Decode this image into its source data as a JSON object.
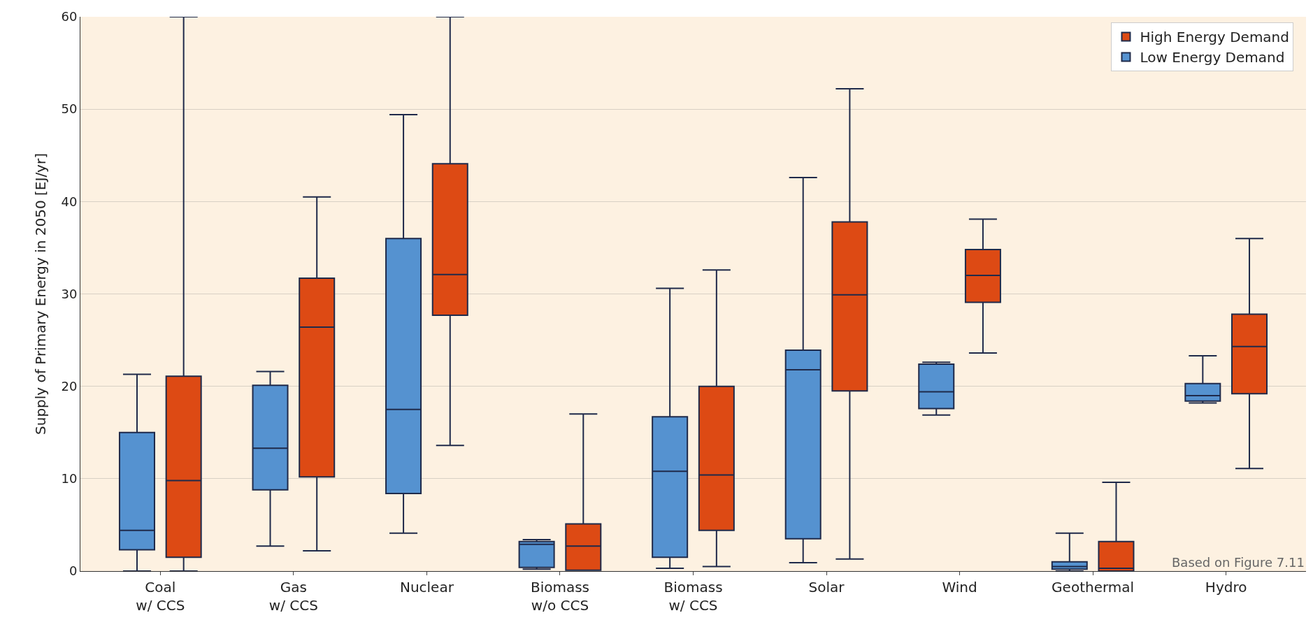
{
  "chart_data": {
    "type": "box",
    "ylabel": "Supply of Primary Energy in 2050 [EJ/yr]",
    "categories": [
      "Coal\nw/ CCS",
      "Gas\nw/ CCS",
      "Nuclear",
      "Biomass\nw/o CCS",
      "Biomass\nw/ CCS",
      "Solar",
      "Wind",
      "Geothermal",
      "Hydro"
    ],
    "series": [
      {
        "name": "Low Energy Demand",
        "color": "#5592d0",
        "boxes": [
          {
            "low": 0,
            "q1": 2.3,
            "median": 4.4,
            "q3": 15.0,
            "high": 21.3
          },
          {
            "low": 2.7,
            "q1": 8.8,
            "median": 13.3,
            "q3": 20.1,
            "high": 21.6
          },
          {
            "low": 4.1,
            "q1": 8.4,
            "median": 17.5,
            "q3": 36.0,
            "high": 49.4
          },
          {
            "low": 0.2,
            "q1": 0.4,
            "median": 2.9,
            "q3": 3.2,
            "high": 3.4
          },
          {
            "low": 0.3,
            "q1": 1.5,
            "median": 10.8,
            "q3": 16.7,
            "high": 30.6
          },
          {
            "low": 0.9,
            "q1": 3.5,
            "median": 21.8,
            "q3": 23.9,
            "high": 42.6
          },
          {
            "low": 16.9,
            "q1": 17.6,
            "median": 19.4,
            "q3": 22.4,
            "high": 22.6
          },
          {
            "low": 0,
            "q1": 0.2,
            "median": 0.5,
            "q3": 1.0,
            "high": 4.1
          },
          {
            "low": 18.2,
            "q1": 18.4,
            "median": 19.0,
            "q3": 20.3,
            "high": 23.3
          }
        ]
      },
      {
        "name": "High Energy Demand",
        "color": "#dd4a14",
        "boxes": [
          {
            "low": 0,
            "q1": 1.5,
            "median": 9.8,
            "q3": 21.1,
            "high": 60
          },
          {
            "low": 2.2,
            "q1": 10.2,
            "median": 26.4,
            "q3": 31.7,
            "high": 40.5
          },
          {
            "low": 13.6,
            "q1": 27.7,
            "median": 32.1,
            "q3": 44.1,
            "high": 60
          },
          {
            "low": 0.1,
            "q1": 0.1,
            "median": 2.7,
            "q3": 5.1,
            "high": 17.0
          },
          {
            "low": 0.5,
            "q1": 4.4,
            "median": 10.4,
            "q3": 20.0,
            "high": 32.6
          },
          {
            "low": 1.3,
            "q1": 19.5,
            "median": 29.9,
            "q3": 37.8,
            "high": 52.2
          },
          {
            "low": 23.6,
            "q1": 29.1,
            "median": 32.0,
            "q3": 34.8,
            "high": 38.1
          },
          {
            "low": 0,
            "q1": 0,
            "median": 0.3,
            "q3": 3.2,
            "high": 9.6
          },
          {
            "low": 11.1,
            "q1": 19.2,
            "median": 24.3,
            "q3": 27.8,
            "high": 36.0
          }
        ]
      }
    ],
    "ylim": [
      0,
      60
    ],
    "yticks": [
      0,
      10,
      20,
      30,
      40,
      50,
      60
    ],
    "grid": "y",
    "legend": "top right",
    "annotations": [
      "Based on Figure 7.11"
    ]
  }
}
